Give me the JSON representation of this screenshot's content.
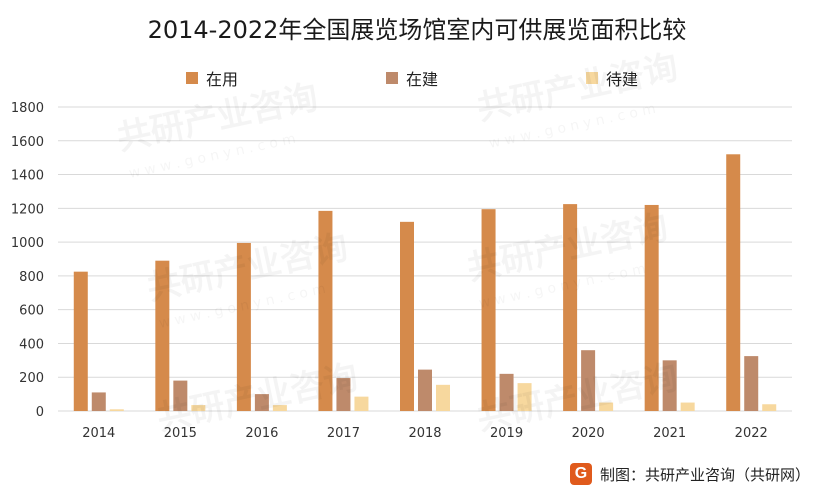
{
  "title": "2014-2022年全国展览场馆室内可供展览面积比较",
  "footer": {
    "logo_text": "G",
    "source": "制图：共研产业咨询（共研网）"
  },
  "watermark": {
    "text": "共研产业咨询",
    "subtext": "w w w . g o n y n . c o m"
  },
  "colors": {
    "in_use": "#D58A4B",
    "under_construction": "#BE8A6B",
    "pending": "#F7D89E",
    "grid": "#d9d9d9",
    "axis_text": "#333333"
  },
  "chart_data": {
    "type": "bar",
    "title": "2014-2022年全国展览场馆室内可供展览面积比较",
    "categories": [
      "2014",
      "2015",
      "2016",
      "2017",
      "2018",
      "2019",
      "2020",
      "2021",
      "2022"
    ],
    "series": [
      {
        "name": "在用",
        "color": "#D58A4B",
        "values": [
          825,
          890,
          995,
          1185,
          1120,
          1195,
          1225,
          1220,
          1520
        ]
      },
      {
        "name": "在建",
        "color": "#BE8A6B",
        "values": [
          110,
          180,
          100,
          195,
          245,
          220,
          360,
          300,
          325
        ]
      },
      {
        "name": "待建",
        "color": "#F7D89E",
        "values": [
          10,
          35,
          35,
          85,
          155,
          165,
          50,
          50,
          40
        ]
      }
    ],
    "xlabel": "",
    "ylabel": "",
    "ylim": [
      0,
      1800
    ],
    "yticks": [
      0,
      200,
      400,
      600,
      800,
      1000,
      1200,
      1400,
      1600,
      1800
    ],
    "grid": true,
    "legend": "top-center"
  }
}
